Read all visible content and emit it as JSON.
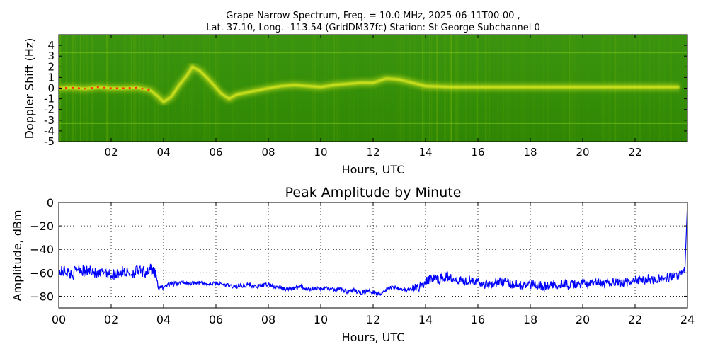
{
  "figure": {
    "title_line1": "Grape Narrow Spectrum, Freq. = 10.0 MHz, 2025-06-11T00-00 ,",
    "title_line2": "Lat.  37.10, Long. -113.54 (GridDM37fc) Station: St George Subchannel 0"
  },
  "chart_data": [
    {
      "type": "heatmap",
      "title": "",
      "xlabel": "Hours, UTC",
      "ylabel": "Doppler Shift (Hz)",
      "xlim": [
        0,
        24
      ],
      "ylim": [
        -5,
        5
      ],
      "x_ticks": [
        {
          "value": 2,
          "label": "02"
        },
        {
          "value": 4,
          "label": "04"
        },
        {
          "value": 6,
          "label": "06"
        },
        {
          "value": 8,
          "label": "08"
        },
        {
          "value": 10,
          "label": "10"
        },
        {
          "value": 12,
          "label": "12"
        },
        {
          "value": 14,
          "label": "14"
        },
        {
          "value": 16,
          "label": "16"
        },
        {
          "value": 18,
          "label": "18"
        },
        {
          "value": 20,
          "label": "20"
        },
        {
          "value": 22,
          "label": "22"
        }
      ],
      "y_ticks": [
        {
          "value": 4,
          "label": "4"
        },
        {
          "value": 3,
          "label": "3"
        },
        {
          "value": 2,
          "label": "2"
        },
        {
          "value": 1,
          "label": "1"
        },
        {
          "value": 0,
          "label": "0"
        },
        {
          "value": -1,
          "label": "-1"
        },
        {
          "value": -2,
          "label": "-2"
        },
        {
          "value": -3,
          "label": "-3"
        },
        {
          "value": -4,
          "label": "-4"
        },
        {
          "value": -5,
          "label": "-5"
        }
      ],
      "colors": {
        "background": "#2e8a00",
        "trace": "#e8f020",
        "peak": "#ff2a00",
        "noise": "#7ab800"
      },
      "doppler_trace": {
        "x": [
          0.0,
          0.5,
          1.0,
          1.5,
          2.0,
          2.5,
          3.0,
          3.5,
          3.8,
          4.0,
          4.3,
          4.6,
          4.9,
          5.1,
          5.4,
          5.8,
          6.2,
          6.5,
          6.8,
          7.2,
          7.6,
          8.0,
          8.5,
          9.0,
          9.5,
          10.0,
          10.5,
          11.0,
          11.5,
          12.0,
          12.5,
          13.0,
          13.5,
          14.0,
          15.0,
          16.0,
          17.0,
          18.0,
          19.0,
          20.0,
          21.0,
          22.0,
          23.0,
          23.7
        ],
        "y": [
          0.0,
          0.05,
          -0.05,
          0.1,
          0.0,
          0.0,
          0.05,
          -0.2,
          -0.8,
          -1.3,
          -0.8,
          0.3,
          1.2,
          2.0,
          1.6,
          0.6,
          -0.5,
          -1.0,
          -0.6,
          -0.4,
          -0.2,
          0.0,
          0.2,
          0.3,
          0.2,
          0.1,
          0.3,
          0.4,
          0.5,
          0.5,
          0.9,
          0.8,
          0.5,
          0.2,
          0.1,
          0.1,
          0.1,
          0.1,
          0.1,
          0.1,
          0.1,
          0.1,
          0.1,
          0.1
        ]
      }
    },
    {
      "type": "line",
      "title": "Peak Amplitude by Minute",
      "xlabel": "Hours, UTC",
      "ylabel": "Amplitude, dBm",
      "xlim": [
        0,
        24
      ],
      "ylim": [
        -90,
        0
      ],
      "grid": true,
      "x_ticks": [
        {
          "value": 0,
          "label": "00"
        },
        {
          "value": 2,
          "label": "02"
        },
        {
          "value": 4,
          "label": "04"
        },
        {
          "value": 6,
          "label": "06"
        },
        {
          "value": 8,
          "label": "08"
        },
        {
          "value": 10,
          "label": "10"
        },
        {
          "value": 12,
          "label": "12"
        },
        {
          "value": 14,
          "label": "14"
        },
        {
          "value": 16,
          "label": "16"
        },
        {
          "value": 18,
          "label": "18"
        },
        {
          "value": 20,
          "label": "20"
        },
        {
          "value": 22,
          "label": "22"
        },
        {
          "value": 24,
          "label": "24"
        }
      ],
      "y_ticks": [
        {
          "value": 0,
          "label": "0"
        },
        {
          "value": -20,
          "label": "−20"
        },
        {
          "value": -40,
          "label": "−40"
        },
        {
          "value": -60,
          "label": "−60"
        },
        {
          "value": -80,
          "label": "−80"
        }
      ],
      "line_color": "#0000ff",
      "series": [
        {
          "x": [
            0.0,
            0.25,
            0.5,
            0.75,
            1.0,
            1.25,
            1.5,
            1.75,
            2.0,
            2.25,
            2.5,
            2.75,
            3.0,
            3.25,
            3.5,
            3.6,
            3.7,
            3.8,
            4.0,
            4.25,
            4.5,
            4.75,
            5.0,
            5.25,
            5.5,
            5.75,
            6.0,
            6.25,
            6.5,
            6.75,
            7.0,
            7.25,
            7.5,
            7.75,
            8.0,
            8.25,
            8.5,
            8.75,
            9.0,
            9.25,
            9.5,
            9.75,
            10.0,
            10.25,
            10.5,
            10.75,
            11.0,
            11.25,
            11.5,
            11.75,
            12.0,
            12.25,
            12.5,
            12.75,
            13.0,
            13.25,
            13.5,
            13.75,
            14.0,
            14.25,
            14.5,
            14.75,
            15.0,
            15.25,
            15.5,
            15.75,
            16.0,
            16.25,
            16.5,
            16.75,
            17.0,
            17.25,
            17.5,
            17.75,
            18.0,
            18.25,
            18.5,
            18.75,
            19.0,
            19.25,
            19.5,
            19.75,
            20.0,
            20.25,
            20.5,
            20.75,
            21.0,
            21.25,
            21.5,
            21.75,
            22.0,
            22.25,
            22.5,
            22.75,
            23.0,
            23.25,
            23.5,
            23.75,
            23.9,
            24.0
          ],
          "y": [
            -60,
            -58,
            -62,
            -55,
            -60,
            -57,
            -63,
            -58,
            -62,
            -60,
            -59,
            -61,
            -58,
            -60,
            -57,
            -58,
            -60,
            -73,
            -72,
            -70,
            -69,
            -68,
            -69,
            -68,
            -69,
            -70,
            -69,
            -70,
            -71,
            -72,
            -71,
            -70,
            -72,
            -71,
            -70,
            -72,
            -73,
            -74,
            -73,
            -72,
            -74,
            -73,
            -74,
            -73,
            -75,
            -74,
            -76,
            -75,
            -77,
            -76,
            -76,
            -78,
            -74,
            -72,
            -73,
            -75,
            -74,
            -72,
            -68,
            -64,
            -66,
            -63,
            -64,
            -66,
            -67,
            -65,
            -68,
            -70,
            -69,
            -68,
            -67,
            -70,
            -69,
            -71,
            -70,
            -69,
            -72,
            -71,
            -70,
            -69,
            -71,
            -70,
            -69,
            -70,
            -68,
            -70,
            -69,
            -67,
            -69,
            -68,
            -66,
            -67,
            -65,
            -66,
            -65,
            -64,
            -63,
            -61,
            -58,
            0
          ]
        }
      ]
    }
  ]
}
